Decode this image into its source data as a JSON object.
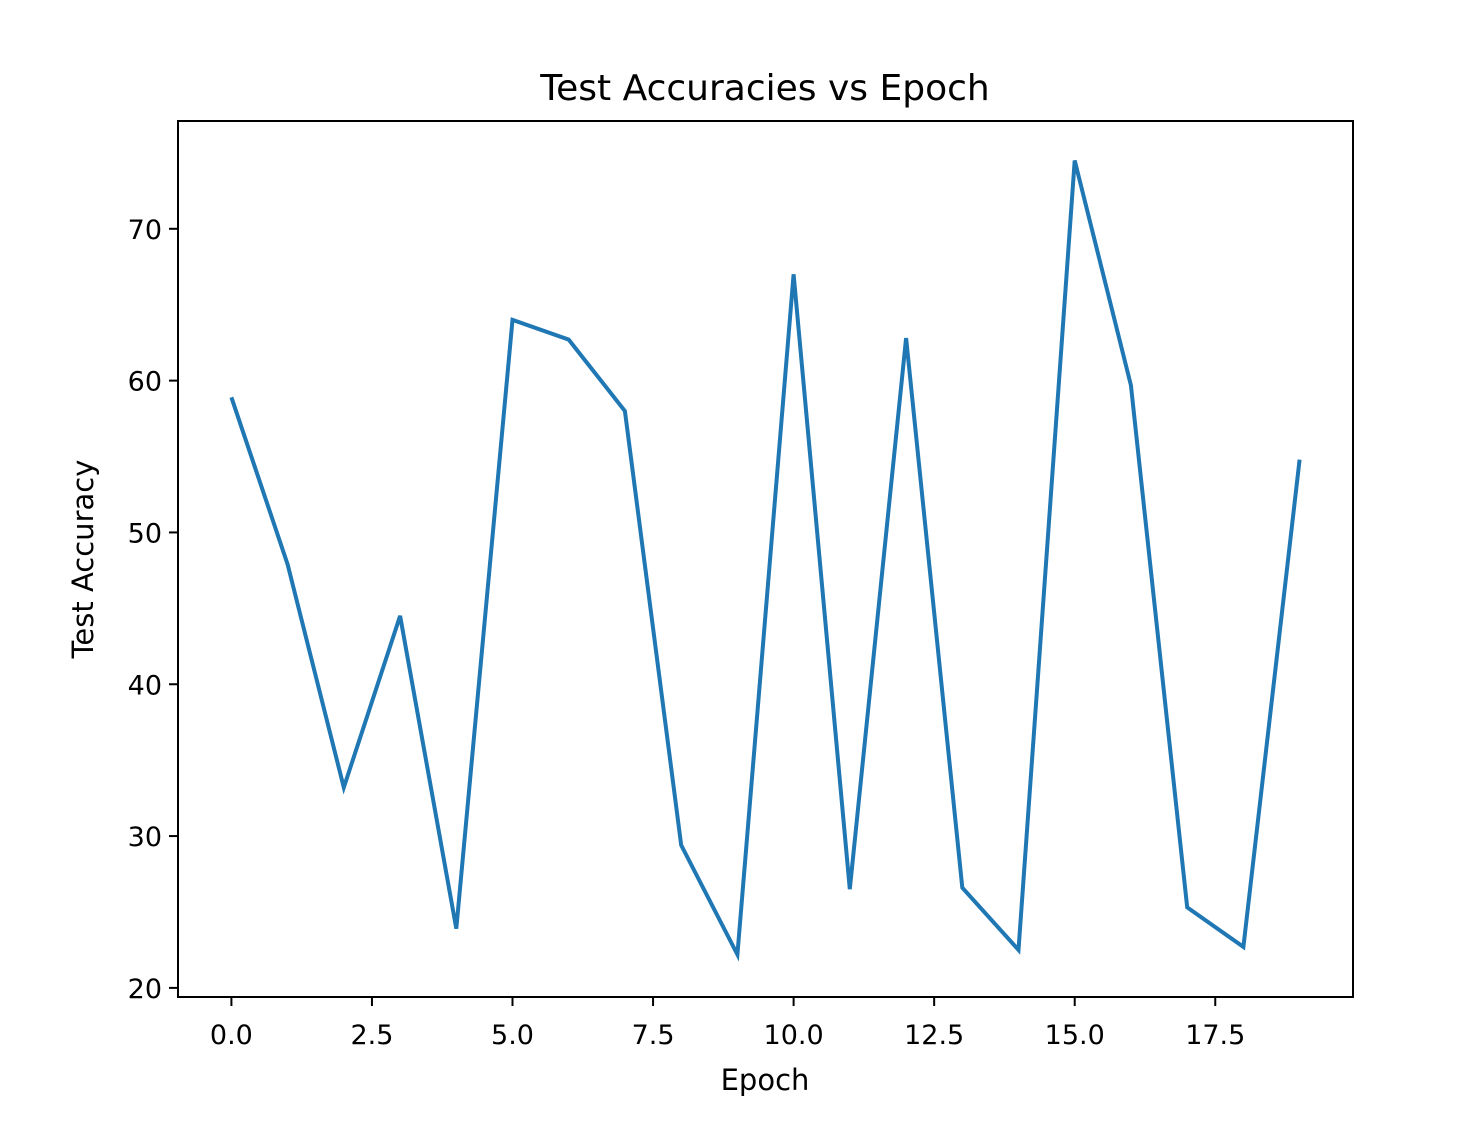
{
  "chart_data": {
    "type": "line",
    "title": "Test Accuracies vs Epoch",
    "xlabel": "Epoch",
    "ylabel": "Test Accuracy",
    "xlim": [
      -0.95,
      19.95
    ],
    "ylim": [
      19.4,
      77.1
    ],
    "grid": false,
    "legend": "none",
    "xticks": [
      0.0,
      2.5,
      5.0,
      7.5,
      10.0,
      12.5,
      15.0,
      17.5
    ],
    "xtick_labels": [
      "0.0",
      "2.5",
      "5.0",
      "7.5",
      "10.0",
      "12.5",
      "15.0",
      "17.5"
    ],
    "yticks": [
      20,
      30,
      40,
      50,
      60,
      70
    ],
    "ytick_labels": [
      "20",
      "30",
      "40",
      "50",
      "60",
      "70"
    ],
    "x": [
      0,
      1,
      2,
      3,
      4,
      5,
      6,
      7,
      8,
      9,
      10,
      11,
      12,
      13,
      14,
      15,
      16,
      17,
      18,
      19
    ],
    "series": [
      {
        "color": "#1f77b4",
        "values": [
          58.9,
          47.9,
          33.2,
          44.5,
          23.9,
          64.0,
          62.7,
          58.0,
          29.4,
          22.2,
          67.0,
          26.5,
          62.8,
          26.6,
          22.5,
          74.5,
          59.7,
          25.3,
          22.7,
          54.8
        ]
      }
    ]
  }
}
